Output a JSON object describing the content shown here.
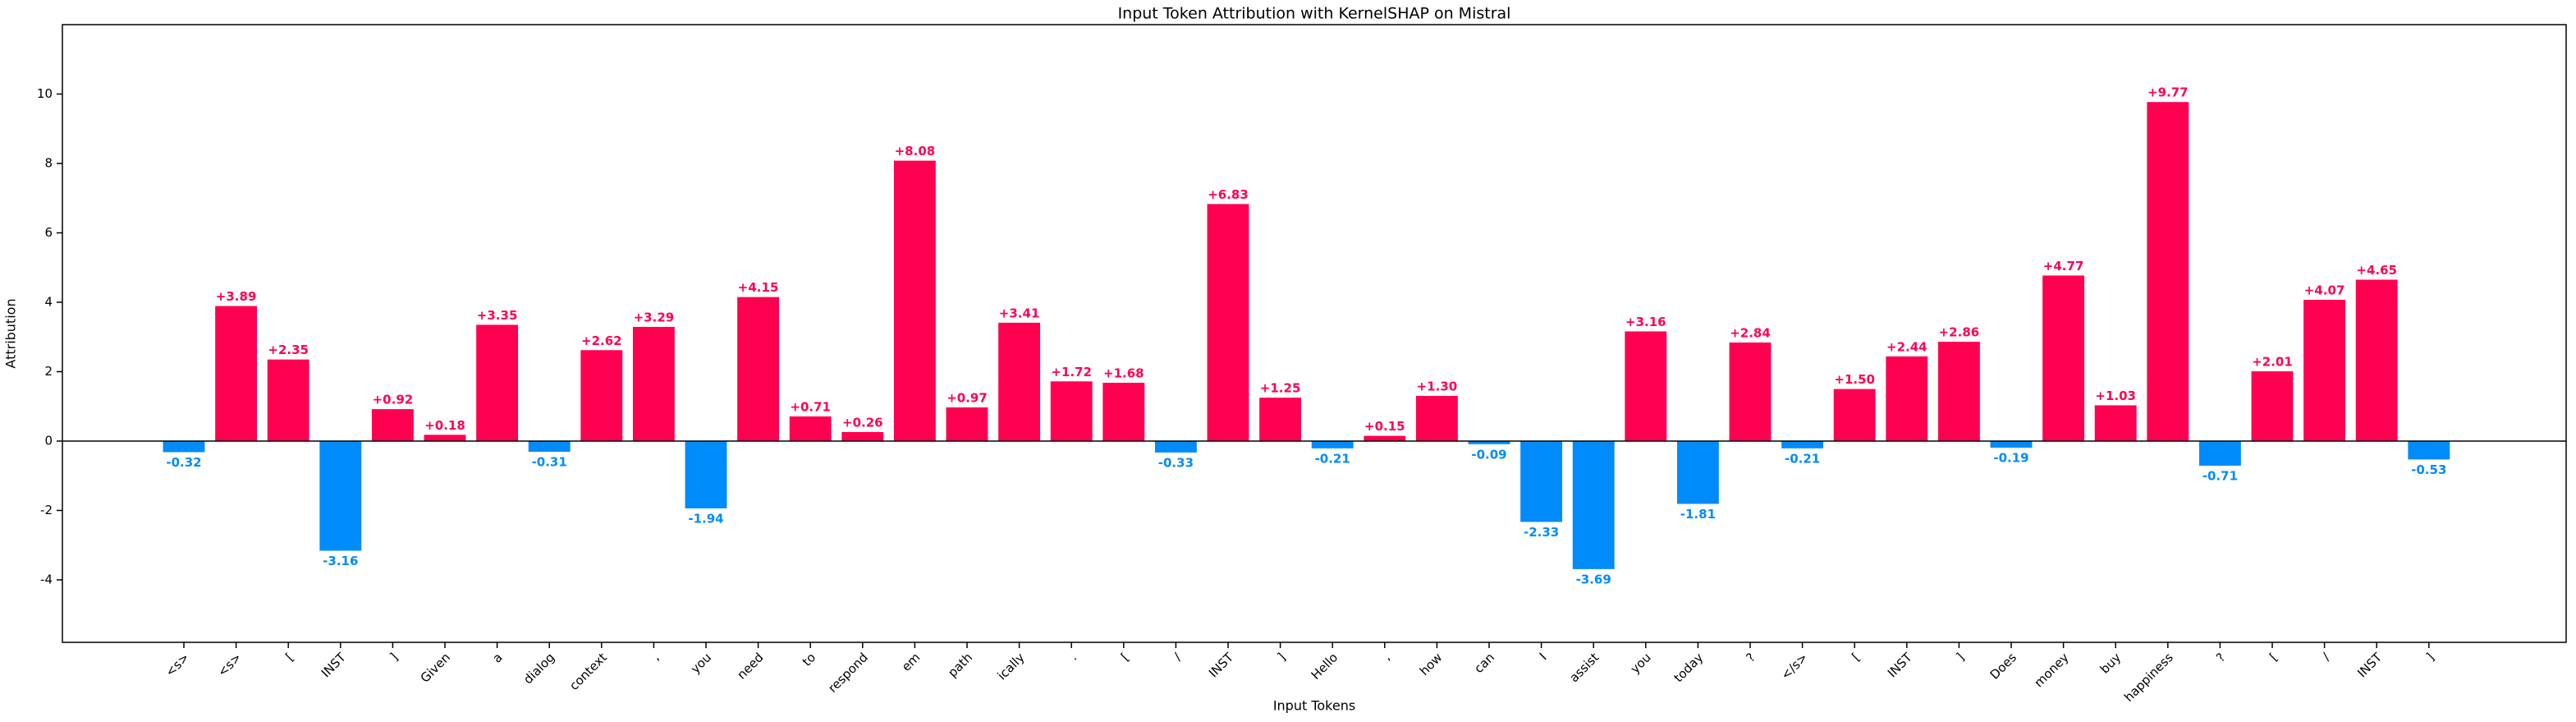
{
  "chart_data": {
    "type": "bar",
    "title": "Input Token Attribution with KernelSHAP on Mistral",
    "x_label": "Input Tokens",
    "y_label": "Attribution",
    "categories": [
      "<s>",
      "<s>",
      "[",
      "INST",
      "]",
      "Given",
      "a",
      "dialog",
      "context",
      ",",
      "you",
      "need",
      "to",
      "respond",
      "em",
      "path",
      "ically",
      ".",
      "[",
      "/",
      "INST",
      "]",
      "Hello",
      ",",
      "how",
      "can",
      "I",
      "assist",
      "you",
      "today",
      "?",
      "</s>",
      "[",
      "INST",
      "]",
      "Does",
      "money",
      "buy",
      "happiness",
      "?",
      "[",
      "/",
      "INST",
      "]"
    ],
    "values": [
      -0.32,
      3.89,
      2.35,
      -3.16,
      0.92,
      0.18,
      3.35,
      -0.31,
      2.62,
      3.29,
      -1.94,
      4.15,
      0.71,
      0.26,
      8.08,
      0.97,
      3.41,
      1.72,
      1.68,
      -0.33,
      6.83,
      1.25,
      -0.21,
      0.15,
      1.3,
      -0.09,
      -2.33,
      -3.69,
      3.16,
      -1.81,
      2.84,
      -0.21,
      1.5,
      2.44,
      2.86,
      -0.19,
      4.77,
      1.03,
      9.77,
      -0.71,
      2.01,
      4.07,
      4.65,
      -0.53
    ],
    "value_labels": [
      "-0.32",
      "+3.89",
      "+2.35",
      "-3.16",
      "+0.92",
      "+0.18",
      "+3.35",
      "-0.31",
      "+2.62",
      "+3.29",
      "-1.94",
      "+4.15",
      "+0.71",
      "+0.26",
      "+8.08",
      "+0.97",
      "+3.41",
      "+1.72",
      "+1.68",
      "-0.33",
      "+6.83",
      "+1.25",
      "-0.21",
      "+0.15",
      "+1.30",
      "-0.09",
      "-2.33",
      "-3.69",
      "+3.16",
      "-1.81",
      "+2.84",
      "-0.21",
      "+1.50",
      "+2.44",
      "+2.86",
      "-0.19",
      "+4.77",
      "+1.03",
      "+9.77",
      "-0.71",
      "+2.01",
      "+4.07",
      "+4.65",
      "-0.53"
    ],
    "positive_color": "#ff0051",
    "negative_color": "#008bfb",
    "ylim": [
      -5.8,
      12.0
    ],
    "yticks": [
      -4,
      -2,
      0,
      2,
      4,
      6,
      8,
      10
    ],
    "grid": false
  }
}
